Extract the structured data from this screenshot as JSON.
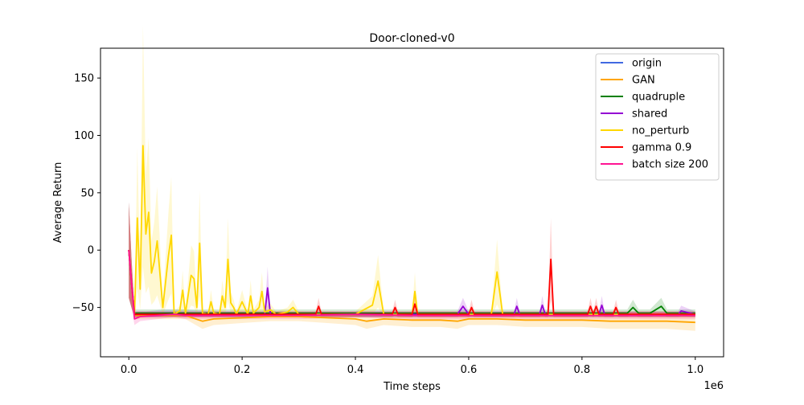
{
  "chart_data": {
    "type": "line",
    "title": "Door-cloned-v0",
    "xlabel": "Time steps",
    "ylabel": "Average Return",
    "x_offset_label": "1e6",
    "xlim": [
      -0.05,
      1.05
    ],
    "ylim": [
      -93,
      176
    ],
    "x_ticks": [
      0.0,
      0.2,
      0.4,
      0.6,
      0.8,
      1.0
    ],
    "x_tick_labels": [
      "0.0",
      "0.2",
      "0.4",
      "0.6",
      "0.8",
      "1.0"
    ],
    "y_ticks": [
      -50,
      0,
      50,
      100,
      150
    ],
    "y_tick_labels": [
      "−50",
      "0",
      "50",
      "100",
      "150"
    ],
    "grid": false,
    "legend_position": "top-right",
    "series": [
      {
        "name": "origin",
        "color": "#4169e1",
        "x": [
          0,
          0.005,
          0.01,
          0.03,
          0.06,
          0.1,
          0.15,
          0.2,
          0.25,
          0.3,
          0.35,
          0.4,
          0.45,
          0.5,
          0.55,
          0.6,
          0.65,
          0.7,
          0.75,
          0.8,
          0.85,
          0.9,
          0.95,
          1.0
        ],
        "y": [
          0,
          -30,
          -56,
          -56,
          -55,
          -55,
          -56,
          -56,
          -56,
          -56,
          -56,
          -56,
          -56,
          -56,
          -56,
          -56,
          -56,
          -56,
          -56,
          -56,
          -56,
          -56,
          -56,
          -56
        ]
      },
      {
        "name": "GAN",
        "color": "#ffa500",
        "x": [
          0,
          0.005,
          0.01,
          0.05,
          0.1,
          0.13,
          0.15,
          0.2,
          0.25,
          0.3,
          0.35,
          0.4,
          0.42,
          0.45,
          0.5,
          0.55,
          0.58,
          0.6,
          0.65,
          0.7,
          0.75,
          0.8,
          0.85,
          0.9,
          0.95,
          1.0
        ],
        "y": [
          0,
          -30,
          -57,
          -57,
          -57,
          -62,
          -60,
          -59,
          -58,
          -58,
          -59,
          -60,
          -62,
          -60,
          -61,
          -61,
          -62,
          -60,
          -60,
          -61,
          -61,
          -61,
          -62,
          -62,
          -62,
          -63
        ]
      },
      {
        "name": "quadruple",
        "color": "#008000",
        "x": [
          0,
          0.005,
          0.01,
          0.1,
          0.3,
          0.55,
          0.6,
          0.65,
          0.7,
          0.8,
          0.85,
          0.88,
          0.89,
          0.9,
          0.92,
          0.94,
          0.95,
          0.96,
          1.0
        ],
        "y": [
          0,
          -30,
          -55,
          -55,
          -55,
          -55,
          -55,
          -55,
          -55,
          -55,
          -55,
          -55,
          -50,
          -55,
          -55,
          -49,
          -55,
          -55,
          -55
        ]
      },
      {
        "name": "shared",
        "color": "#9400d3",
        "x": [
          0,
          0.005,
          0.01,
          0.2,
          0.24,
          0.245,
          0.25,
          0.4,
          0.58,
          0.59,
          0.6,
          0.68,
          0.685,
          0.69,
          0.725,
          0.73,
          0.735,
          0.83,
          0.835,
          0.84,
          0.97,
          0.975,
          1.0
        ],
        "y": [
          0,
          -30,
          -56,
          -56,
          -56,
          -33,
          -56,
          -56,
          -56,
          -49,
          -56,
          -56,
          -49,
          -56,
          -56,
          -48,
          -56,
          -56,
          -48,
          -56,
          -56,
          -53,
          -56
        ]
      },
      {
        "name": "no_perturb",
        "color": "#ffd700",
        "x": [
          0,
          0.005,
          0.01,
          0.015,
          0.02,
          0.025,
          0.03,
          0.035,
          0.04,
          0.045,
          0.05,
          0.06,
          0.07,
          0.075,
          0.08,
          0.09,
          0.095,
          0.1,
          0.11,
          0.115,
          0.12,
          0.125,
          0.13,
          0.14,
          0.145,
          0.15,
          0.16,
          0.165,
          0.17,
          0.175,
          0.18,
          0.185,
          0.19,
          0.2,
          0.21,
          0.215,
          0.22,
          0.23,
          0.235,
          0.24,
          0.25,
          0.26,
          0.28,
          0.29,
          0.3,
          0.35,
          0.4,
          0.43,
          0.44,
          0.45,
          0.5,
          0.505,
          0.51,
          0.55,
          0.6,
          0.64,
          0.65,
          0.66,
          0.7,
          0.75,
          0.8,
          0.85,
          0.9,
          0.95,
          1.0
        ],
        "y": [
          0,
          -30,
          -56,
          28,
          -34,
          91,
          14,
          33,
          -20,
          -10,
          8,
          -50,
          -5,
          13,
          -56,
          -53,
          -35,
          -55,
          -22,
          -25,
          -50,
          6,
          -55,
          -56,
          -45,
          -55,
          -56,
          -40,
          -50,
          -8,
          -46,
          -50,
          -56,
          -45,
          -56,
          -40,
          -55,
          -50,
          -36,
          -54,
          -52,
          -56,
          -54,
          -50,
          -56,
          -56,
          -56,
          -48,
          -27,
          -56,
          -56,
          -36,
          -56,
          -56,
          -56,
          -56,
          -19,
          -56,
          -56,
          -56,
          -56,
          -56,
          -56,
          -56,
          -56
        ]
      },
      {
        "name": "gamma 0.9",
        "color": "#ff0000",
        "x": [
          0,
          0.005,
          0.01,
          0.1,
          0.2,
          0.3,
          0.33,
          0.335,
          0.34,
          0.45,
          0.465,
          0.47,
          0.475,
          0.5,
          0.505,
          0.51,
          0.6,
          0.605,
          0.61,
          0.735,
          0.74,
          0.745,
          0.75,
          0.755,
          0.8,
          0.81,
          0.815,
          0.82,
          0.825,
          0.83,
          0.855,
          0.86,
          0.865,
          1.0
        ],
        "y": [
          0,
          -30,
          -56,
          -56,
          -56,
          -56,
          -56,
          -49,
          -56,
          -56,
          -56,
          -50,
          -56,
          -56,
          -47,
          -56,
          -56,
          -50,
          -56,
          -56,
          -56,
          -8,
          -56,
          -56,
          -56,
          -56,
          -49,
          -56,
          -49,
          -56,
          -56,
          -50,
          -56,
          -56
        ]
      },
      {
        "name": "batch size 200",
        "color": "#ff1493",
        "x": [
          0,
          0.005,
          0.01,
          0.02,
          0.05,
          0.08,
          0.1,
          0.2,
          0.3,
          0.4,
          0.5,
          0.6,
          0.7,
          0.8,
          0.9,
          1.0
        ],
        "y": [
          0,
          -30,
          -60,
          -58,
          -57,
          -56,
          -57,
          -57,
          -57,
          -56,
          -57,
          -57,
          -57,
          -57,
          -57,
          -57
        ]
      }
    ]
  }
}
